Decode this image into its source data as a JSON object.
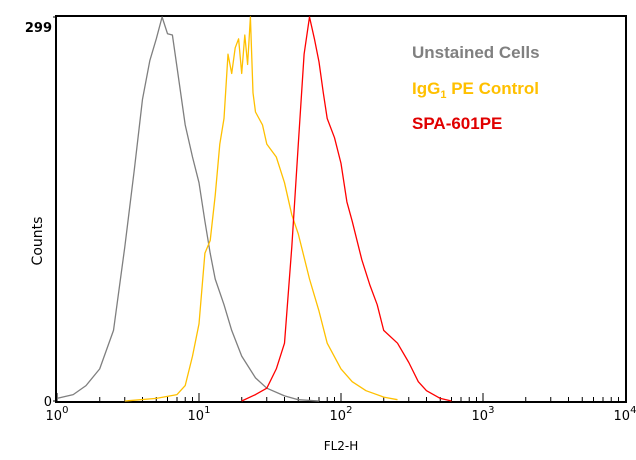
{
  "chart_data": {
    "type": "line",
    "title": "",
    "xlabel": "FL2-H",
    "ylabel": "Counts",
    "xscale": "log",
    "xlim": [
      1,
      10000
    ],
    "ylim": [
      0,
      299
    ],
    "y_ticks": [
      "0",
      "299"
    ],
    "x_ticks": [
      {
        "base": "10",
        "exp": "0"
      },
      {
        "base": "10",
        "exp": "1"
      },
      {
        "base": "10",
        "exp": "2"
      },
      {
        "base": "10",
        "exp": "3"
      },
      {
        "base": "10",
        "exp": "4"
      }
    ],
    "grid": false,
    "legend_position": "top-right",
    "series": [
      {
        "name": "Unstained Cells",
        "color": "#7f7f7f",
        "x": [
          1,
          1.3,
          1.6,
          2,
          2.5,
          3,
          3.5,
          4,
          4.5,
          5,
          5.5,
          6,
          6.5,
          7,
          8,
          9,
          10,
          11,
          12,
          13,
          15,
          17,
          20,
          25,
          30,
          40,
          50,
          70
        ],
        "y": [
          2,
          5,
          12,
          25,
          55,
          120,
          180,
          235,
          265,
          282,
          299,
          286,
          285,
          260,
          215,
          190,
          170,
          140,
          115,
          95,
          75,
          55,
          35,
          18,
          10,
          4,
          1,
          0
        ]
      },
      {
        "name": "IgG1 PE Control",
        "color": "#ffc000",
        "x": [
          3,
          5,
          7,
          8,
          9,
          10,
          11,
          12,
          13,
          14,
          15,
          16,
          17,
          18,
          19,
          20,
          21,
          22,
          23,
          24,
          25,
          28,
          30,
          35,
          40,
          45,
          50,
          60,
          70,
          80,
          100,
          120,
          150,
          200,
          250
        ],
        "y": [
          0,
          2,
          5,
          12,
          35,
          60,
          115,
          125,
          160,
          200,
          220,
          270,
          255,
          275,
          282,
          255,
          285,
          262,
          299,
          240,
          225,
          215,
          200,
          190,
          170,
          145,
          130,
          95,
          70,
          45,
          25,
          15,
          8,
          3,
          1
        ]
      },
      {
        "name": "SPA-601PE",
        "color": "#ff0000",
        "x": [
          20,
          25,
          30,
          35,
          40,
          45,
          50,
          55,
          60,
          65,
          70,
          75,
          80,
          90,
          100,
          110,
          120,
          140,
          160,
          180,
          200,
          250,
          300,
          350,
          400,
          500,
          600
        ],
        "y": [
          0,
          5,
          10,
          25,
          45,
          120,
          200,
          270,
          299,
          282,
          264,
          240,
          220,
          205,
          185,
          155,
          140,
          110,
          90,
          75,
          55,
          45,
          30,
          15,
          8,
          2,
          0
        ]
      }
    ]
  },
  "legend": {
    "unstained_label": "Unstained Cells",
    "igg_label_main": "IgG",
    "igg_label_sub": "1",
    "igg_label_rest": " PE Control",
    "spa_label": "SPA-601PE"
  }
}
